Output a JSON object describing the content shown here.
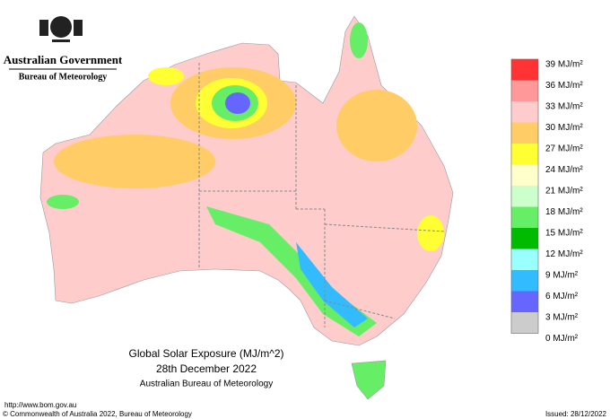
{
  "header": {
    "government": "Australian Government",
    "agency": "Bureau of Meteorology"
  },
  "legend": {
    "labels": [
      "39 MJ/m²",
      "36 MJ/m²",
      "33 MJ/m²",
      "30 MJ/m²",
      "27 MJ/m²",
      "24 MJ/m²",
      "21 MJ/m²",
      "18 MJ/m²",
      "15 MJ/m²",
      "12 MJ/m²",
      "9 MJ/m²",
      "6 MJ/m²",
      "3 MJ/m²",
      "0 MJ/m²"
    ],
    "colors": [
      "#ff3333",
      "#ff9999",
      "#ffcccc",
      "#ffcc66",
      "#ffff33",
      "#ffffcc",
      "#ccffcc",
      "#66ee66",
      "#00bb00",
      "#99ffff",
      "#33bbff",
      "#6666ff",
      "#cccccc"
    ]
  },
  "title": {
    "line1": "Global Solar Exposure (MJ/m^2)",
    "line2": "28th December 2022",
    "line3": "Australian Bureau of Meteorology"
  },
  "footer": {
    "url": "http://www.bom.gov.au",
    "copyright": "© Commonwealth of Australia 2022, Bureau of Meteorology",
    "issued": "Issued: 28/12/2022"
  }
}
